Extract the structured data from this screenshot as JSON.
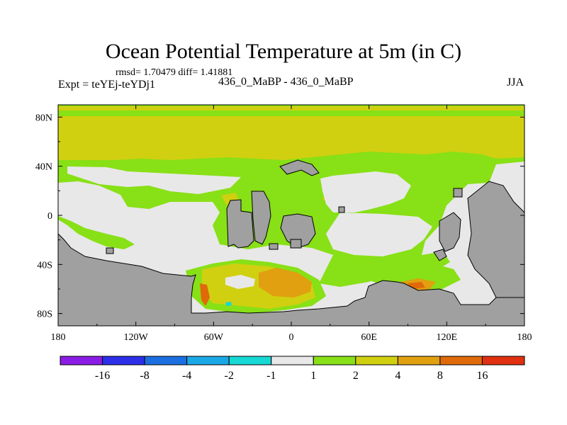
{
  "chart_data": {
    "type": "heatmap",
    "title": "Ocean Potential Temperature at 5m (in C)",
    "stats": "rmsd= 1.70479 diff= 1.41881",
    "experiment": "Expt = teYEj-teYDj1",
    "runs": "436_0_MaBP - 436_0_MaBP",
    "season": "JJA",
    "x_ticks": [
      {
        "lon": -180,
        "label": "180"
      },
      {
        "lon": -120,
        "label": "120W"
      },
      {
        "lon": -60,
        "label": "60W"
      },
      {
        "lon": 0,
        "label": "0"
      },
      {
        "lon": 60,
        "label": "60E"
      },
      {
        "lon": 120,
        "label": "120E"
      },
      {
        "lon": 180,
        "label": "180"
      }
    ],
    "y_ticks": [
      {
        "lat": 80,
        "label": "80N"
      },
      {
        "lat": 40,
        "label": "40N"
      },
      {
        "lat": 0,
        "label": "0"
      },
      {
        "lat": -40,
        "label": "40S"
      },
      {
        "lat": -80,
        "label": "80S"
      }
    ],
    "xlim": [
      -180,
      180
    ],
    "ylim": [
      -90,
      90
    ],
    "colorbar": {
      "colors": [
        "#8a1ce6",
        "#2d2ee8",
        "#1b6fe0",
        "#1ba8e6",
        "#16d8d4",
        "#e8e8e8",
        "#88e016",
        "#d0d010",
        "#e0a010",
        "#e06a0a",
        "#e03010"
      ],
      "labels": [
        "-16",
        "-8",
        "-4",
        "-2",
        "-1",
        "1",
        "2",
        "4",
        "8",
        "16"
      ]
    },
    "colors": {
      "land": "#a0a0a0",
      "neutral": "#e8e8e8",
      "green": "#88e016",
      "yellow": "#d0d010",
      "orange": "#e0a010",
      "darkorange": "#e06a0a",
      "cyan": "#16d8d4"
    }
  }
}
